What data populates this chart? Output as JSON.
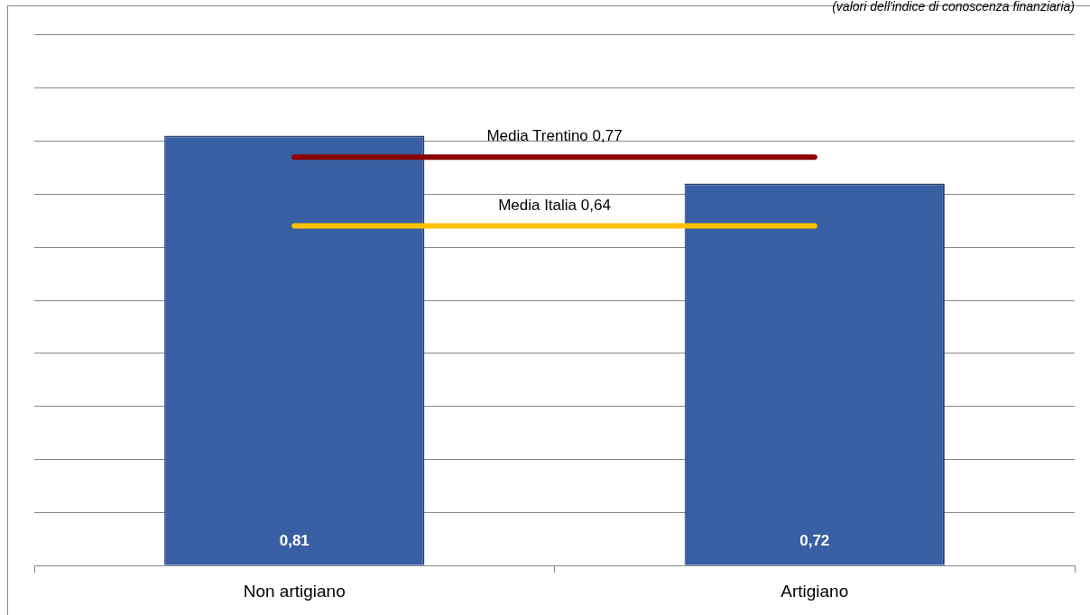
{
  "chart_data": {
    "type": "bar",
    "subtitle": "(valori dell'indice di conoscenza finanziaria)",
    "categories": [
      "Non artigiano",
      "Artigiano"
    ],
    "values": [
      0.81,
      0.72
    ],
    "color": "#385ea3",
    "value_labels": [
      "0,81",
      "0,72"
    ],
    "ylim": [
      0,
      1
    ],
    "yticks": [
      {
        "value": 0,
        "label": null
      },
      {
        "value": 0.1,
        "label": null
      },
      {
        "value": 0.2,
        "label": null
      },
      {
        "value": 0.3,
        "label": null
      },
      {
        "value": 0.4,
        "label": null
      },
      {
        "value": 0.5,
        "label": null
      },
      {
        "value": 0.6,
        "label": null
      },
      {
        "value": 0.7,
        "label": null
      },
      {
        "value": 0.8,
        "label": null
      },
      {
        "value": 0.9,
        "label": null
      },
      {
        "value": 1,
        "label": null
      }
    ],
    "tick_labels": "x",
    "grid": "y",
    "ref_lines": [
      {
        "axis": "y",
        "value": 0.77,
        "label": "Media Trentino 0,77",
        "color": "#8b0000"
      },
      {
        "axis": "y",
        "value": 0.64,
        "label": "Media Italia 0,64",
        "color": "#ffc000"
      }
    ]
  }
}
